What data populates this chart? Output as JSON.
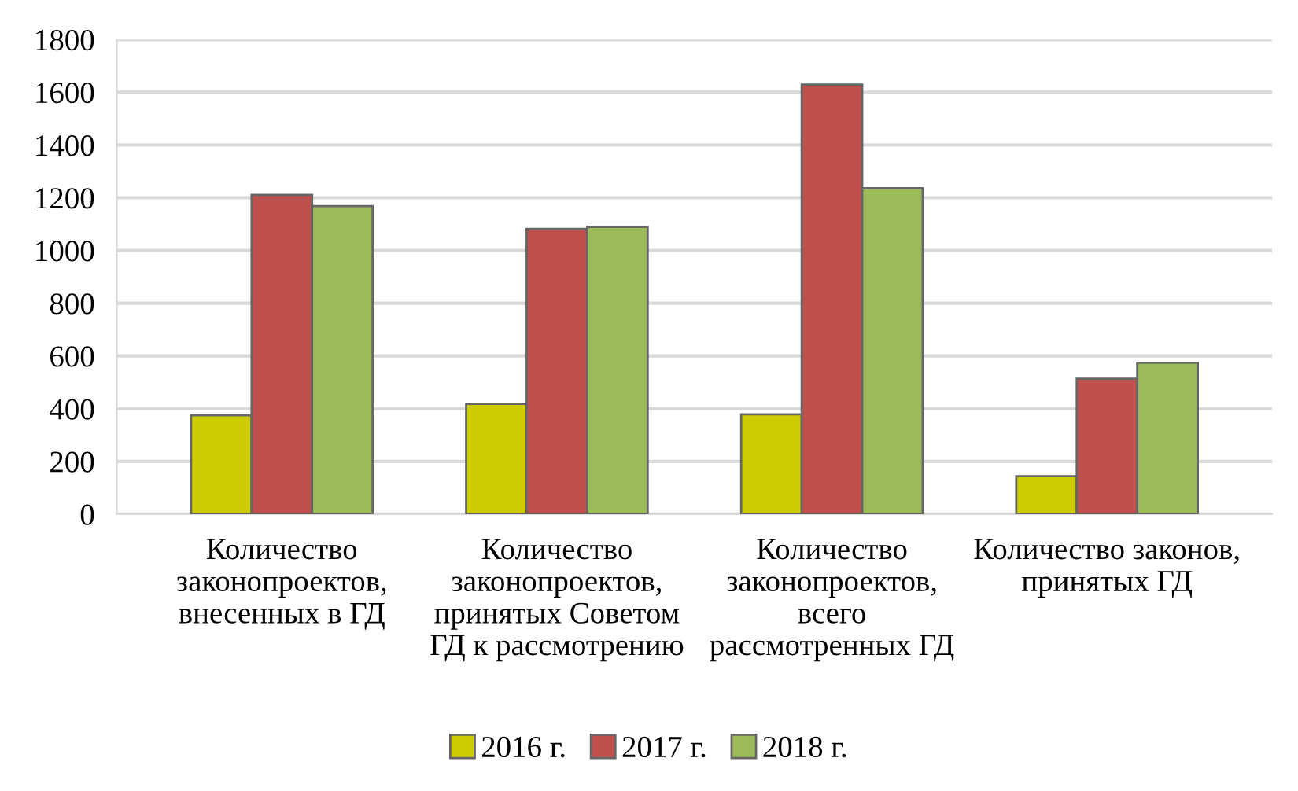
{
  "chart_data": {
    "type": "bar",
    "categories": [
      "Количество законопроектов, внесенных в ГД",
      "Количество законопроектов, принятых Советом ГД к рассмотрению",
      "Количество законопроектов, всего рассмотренных ГД",
      "Количество законов, принятых ГД"
    ],
    "series": [
      {
        "name": "2016 г.",
        "color": "#cccc00",
        "values": [
          375,
          418,
          379,
          144
        ]
      },
      {
        "name": "2017 г.",
        "color": "#c0504d",
        "values": [
          1211,
          1082,
          1629,
          514
        ]
      },
      {
        "name": "2018 г.",
        "color": "#9bbb59",
        "values": [
          1168,
          1089,
          1236,
          574
        ]
      }
    ],
    "ylim": [
      0,
      1800
    ],
    "yticks": [
      0,
      200,
      400,
      600,
      800,
      1000,
      1200,
      1400,
      1600,
      1800
    ],
    "grid": "y",
    "legend": "bottom"
  }
}
